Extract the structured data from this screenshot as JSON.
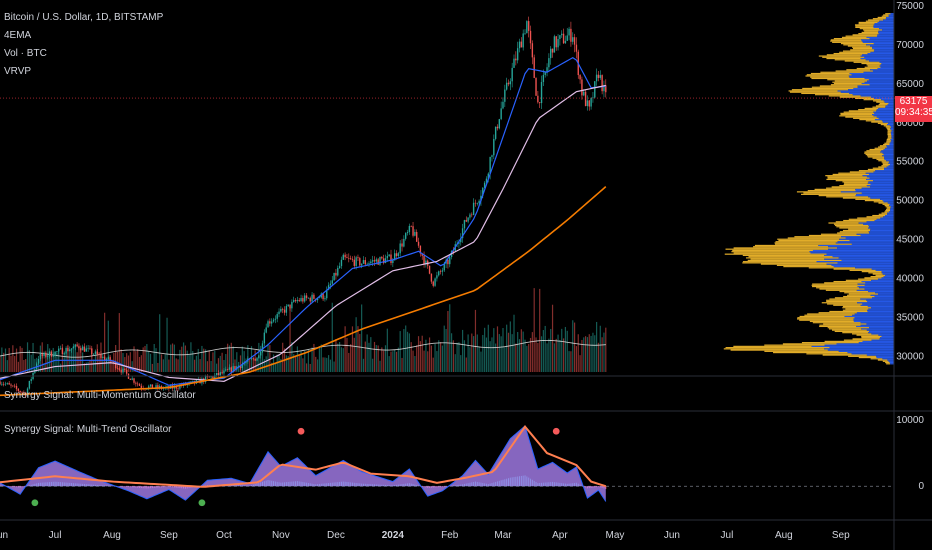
{
  "header": {
    "symbol_title": "Bitcoin / U.S. Dollar, 1D, BITSTAMP",
    "indicators": [
      "4EMA",
      "Vol · BTC",
      "VRVP"
    ]
  },
  "panes": {
    "momentum_title": "Synergy Signal: Multi-Momentum Oscillator",
    "trend_title": "Synergy Signal: Multi-Trend Oscillator"
  },
  "price_badge": {
    "price": "63175",
    "countdown": "09:34:35"
  },
  "colors": {
    "background": "#000000",
    "up_candle": "#26a69a",
    "down_candle": "#ef5350",
    "ema_fast": "#2962ff",
    "ema_mid": "#e1bee7",
    "ema_slow": "#f57c00",
    "volume_ma": "#e0e0e0",
    "vrvp_up": "#2962ff",
    "vrvp_down": "#fbc02d",
    "osc_fill": "#b388ff",
    "osc_line": "#ff7f50",
    "signal_sell": "#f55a5a",
    "signal_buy": "#4caf50",
    "badge": "#f23645"
  },
  "chart_data": [
    {
      "type": "line",
      "pane": "price",
      "y_axis_ticks": [
        75000,
        70000,
        65000,
        60000,
        55000,
        50000,
        45000,
        40000,
        35000,
        30000
      ],
      "ylim": [
        28000,
        75000
      ],
      "x_axis_ticks": [
        "Jun",
        "Jul",
        "Aug",
        "Sep",
        "Oct",
        "Nov",
        "Dec",
        "2024",
        "Feb",
        "Mar",
        "Apr",
        "May",
        "Jun",
        "Jul",
        "Aug",
        "Sep"
      ],
      "x_time_range": [
        "2023-06-01",
        "2024-09-30"
      ],
      "last_price": 63175,
      "series": [
        {
          "role": "price_close",
          "points": [
            [
              "2023-06-01",
              26800
            ],
            [
              "2023-06-15",
              25200
            ],
            [
              "2023-06-22",
              29900
            ],
            [
              "2023-07-01",
              30500
            ],
            [
              "2023-07-14",
              31300
            ],
            [
              "2023-08-01",
              29300
            ],
            [
              "2023-08-17",
              26100
            ],
            [
              "2023-09-01",
              25900
            ],
            [
              "2023-09-15",
              26600
            ],
            [
              "2023-10-01",
              27900
            ],
            [
              "2023-10-20",
              30000
            ],
            [
              "2023-10-24",
              34200
            ],
            [
              "2023-11-10",
              37200
            ],
            [
              "2023-11-25",
              37800
            ],
            [
              "2023-12-05",
              42500
            ],
            [
              "2023-12-15",
              42000
            ],
            [
              "2024-01-01",
              42600
            ],
            [
              "2024-01-11",
              46500
            ],
            [
              "2024-01-23",
              39500
            ],
            [
              "2024-02-01",
              42500
            ],
            [
              "2024-02-10",
              47500
            ],
            [
              "2024-02-20",
              52000
            ],
            [
              "2024-02-28",
              61000
            ],
            [
              "2024-03-05",
              66000
            ],
            [
              "2024-03-14",
              73000
            ],
            [
              "2024-03-20",
              62500
            ],
            [
              "2024-03-28",
              70000
            ],
            [
              "2024-04-08",
              71500
            ],
            [
              "2024-04-13",
              64000
            ],
            [
              "2024-04-17",
              61500
            ],
            [
              "2024-04-22",
              66500
            ],
            [
              "2024-04-26",
              63175
            ]
          ]
        },
        {
          "role": "ema_fast",
          "points": [
            [
              "2023-06-01",
              27000
            ],
            [
              "2023-07-01",
              29500
            ],
            [
              "2023-08-01",
              29500
            ],
            [
              "2023-09-01",
              26300
            ],
            [
              "2023-10-01",
              27200
            ],
            [
              "2023-10-25",
              31500
            ],
            [
              "2023-11-15",
              36300
            ],
            [
              "2023-12-10",
              41300
            ],
            [
              "2024-01-01",
              42400
            ],
            [
              "2024-01-15",
              43500
            ],
            [
              "2024-01-28",
              41500
            ],
            [
              "2024-02-15",
              48000
            ],
            [
              "2024-02-29",
              57500
            ],
            [
              "2024-03-14",
              67000
            ],
            [
              "2024-03-25",
              66500
            ],
            [
              "2024-04-09",
              68500
            ],
            [
              "2024-04-18",
              64500
            ],
            [
              "2024-04-26",
              64700
            ]
          ]
        },
        {
          "role": "ema_mid",
          "points": [
            [
              "2023-06-01",
              27200
            ],
            [
              "2023-07-01",
              28700
            ],
            [
              "2023-08-01",
              29200
            ],
            [
              "2023-09-01",
              27300
            ],
            [
              "2023-10-01",
              26800
            ],
            [
              "2023-11-01",
              30300
            ],
            [
              "2023-12-01",
              36500
            ],
            [
              "2024-01-01",
              41000
            ],
            [
              "2024-01-25",
              42200
            ],
            [
              "2024-02-15",
              44800
            ],
            [
              "2024-03-01",
              51500
            ],
            [
              "2024-03-20",
              60500
            ],
            [
              "2024-04-10",
              64000
            ],
            [
              "2024-04-26",
              64800
            ]
          ]
        },
        {
          "role": "ema_slow",
          "points": [
            [
              "2023-06-01",
              25000
            ],
            [
              "2023-09-01",
              26000
            ],
            [
              "2023-10-15",
              28000
            ],
            [
              "2023-11-15",
              30500
            ],
            [
              "2023-12-15",
              33500
            ],
            [
              "2024-01-15",
              36000
            ],
            [
              "2024-02-15",
              38500
            ],
            [
              "2024-03-15",
              43500
            ],
            [
              "2024-04-05",
              47500
            ],
            [
              "2024-04-26",
              51800
            ]
          ]
        }
      ]
    },
    {
      "type": "area",
      "pane": "trend_oscillator",
      "y_axis_ticks": [
        10000,
        0
      ],
      "ylim": [
        -4800,
        10000
      ],
      "series": [
        {
          "role": "oscillator",
          "points": [
            [
              "2023-06-01",
              500
            ],
            [
              "2023-06-12",
              -1200
            ],
            [
              "2023-06-22",
              2800
            ],
            [
              "2023-07-01",
              3800
            ],
            [
              "2023-07-14",
              2200
            ],
            [
              "2023-07-25",
              900
            ],
            [
              "2023-08-10",
              -700
            ],
            [
              "2023-08-20",
              -1900
            ],
            [
              "2023-09-01",
              -500
            ],
            [
              "2023-09-10",
              -2100
            ],
            [
              "2023-09-22",
              900
            ],
            [
              "2023-10-05",
              1200
            ],
            [
              "2023-10-15",
              400
            ],
            [
              "2023-10-25",
              5200
            ],
            [
              "2023-11-01",
              3000
            ],
            [
              "2023-11-10",
              4300
            ],
            [
              "2023-11-20",
              1600
            ],
            [
              "2023-12-05",
              3900
            ],
            [
              "2023-12-15",
              2200
            ],
            [
              "2024-01-01",
              700
            ],
            [
              "2024-01-10",
              2600
            ],
            [
              "2024-01-20",
              -1500
            ],
            [
              "2024-01-28",
              -700
            ],
            [
              "2024-02-08",
              1600
            ],
            [
              "2024-02-15",
              3900
            ],
            [
              "2024-02-22",
              1800
            ],
            [
              "2024-03-05",
              7200
            ],
            [
              "2024-03-13",
              9100
            ],
            [
              "2024-03-20",
              2600
            ],
            [
              "2024-03-28",
              3600
            ],
            [
              "2024-04-05",
              2000
            ],
            [
              "2024-04-10",
              2900
            ],
            [
              "2024-04-16",
              -1800
            ],
            [
              "2024-04-22",
              -600
            ],
            [
              "2024-04-26",
              -2300
            ]
          ]
        },
        {
          "role": "signal_line",
          "points": [
            [
              "2023-06-01",
              600
            ],
            [
              "2023-07-01",
              1500
            ],
            [
              "2023-08-01",
              700
            ],
            [
              "2023-09-01",
              200
            ],
            [
              "2023-09-20",
              -100
            ],
            [
              "2023-10-20",
              600
            ],
            [
              "2023-11-01",
              3300
            ],
            [
              "2023-11-20",
              2500
            ],
            [
              "2023-12-05",
              3600
            ],
            [
              "2023-12-20",
              1900
            ],
            [
              "2024-01-10",
              1500
            ],
            [
              "2024-01-25",
              500
            ],
            [
              "2024-02-10",
              1300
            ],
            [
              "2024-02-25",
              2200
            ],
            [
              "2024-03-13",
              9000
            ],
            [
              "2024-03-25",
              5000
            ],
            [
              "2024-04-10",
              3200
            ],
            [
              "2024-04-18",
              700
            ],
            [
              "2024-04-26",
              0
            ]
          ]
        }
      ],
      "signals": [
        {
          "kind": "sell",
          "date": "2023-11-12",
          "value": 8300
        },
        {
          "kind": "sell",
          "date": "2024-03-30",
          "value": 8300
        },
        {
          "kind": "buy",
          "date": "2023-06-20",
          "value": -2500
        },
        {
          "kind": "buy",
          "date": "2023-09-19",
          "value": -2500
        }
      ]
    }
  ]
}
